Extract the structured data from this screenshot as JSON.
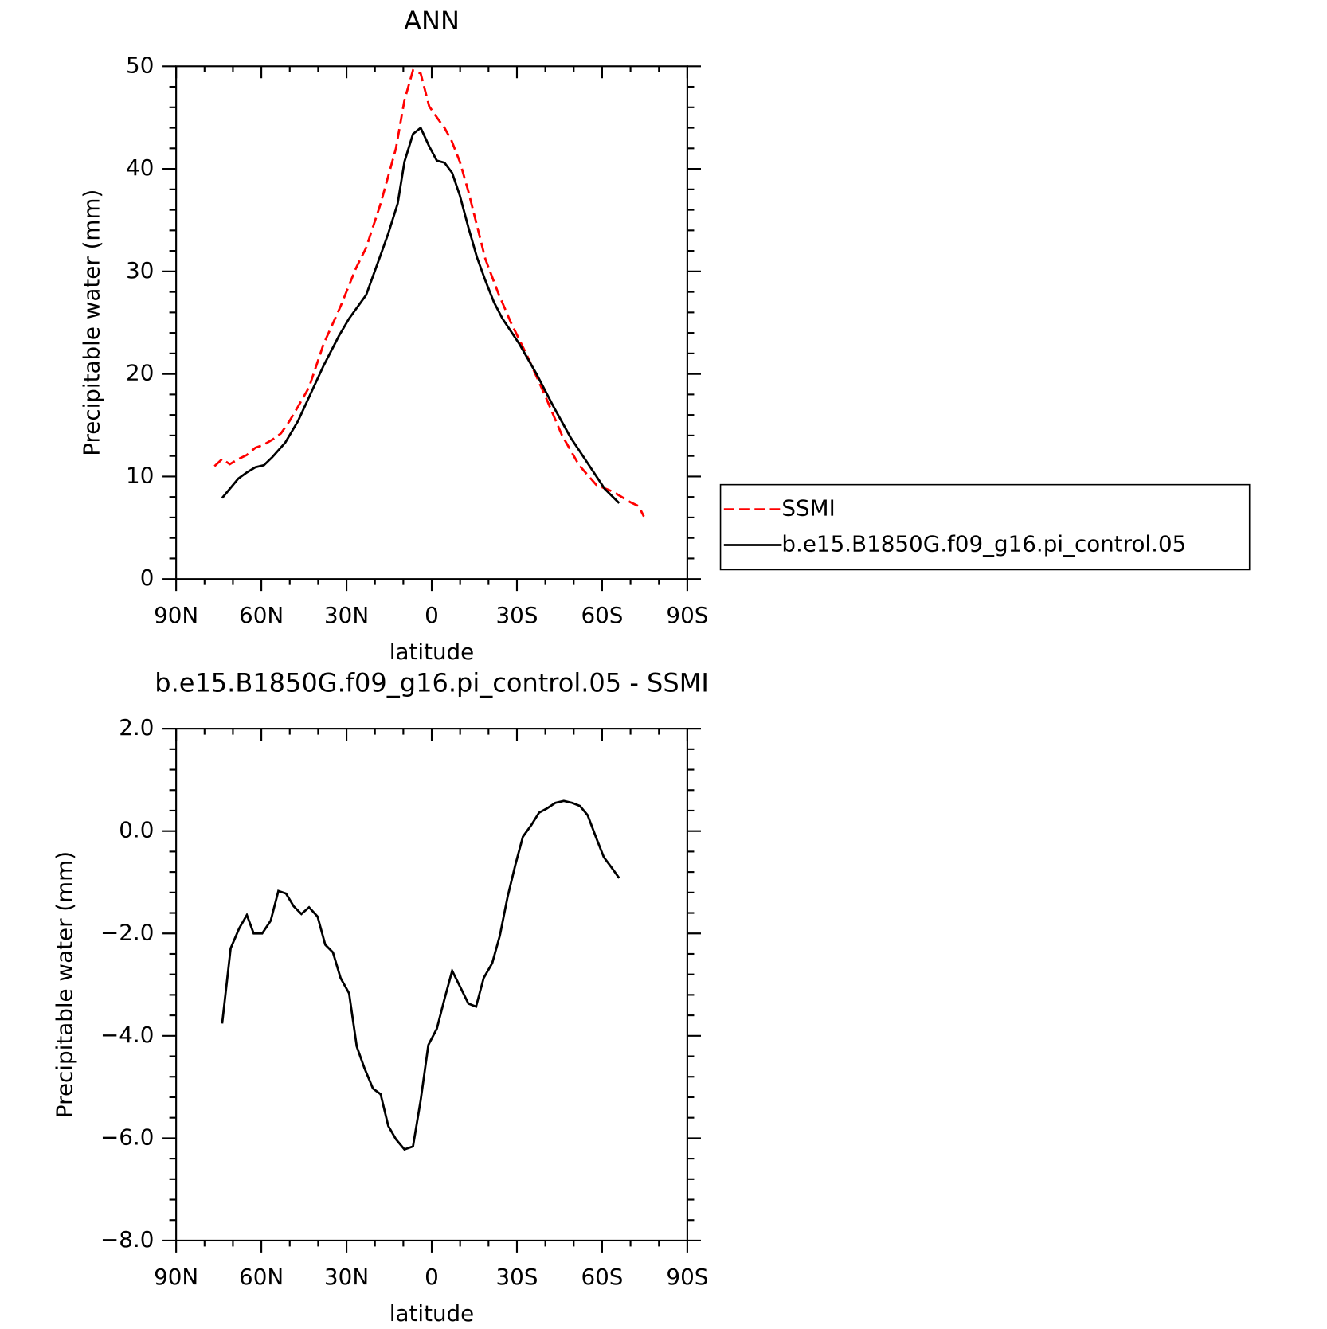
{
  "chart_data": [
    {
      "type": "line",
      "title": "ANN",
      "xlabel": "latitude",
      "ylabel": "Precipitable water (mm)",
      "xlim": [
        90,
        -90
      ],
      "xticks": [
        {
          "value": 90,
          "label": "90N"
        },
        {
          "value": 60,
          "label": "60N"
        },
        {
          "value": 30,
          "label": "30N"
        },
        0,
        {
          "value": -30,
          "label": "30S"
        },
        {
          "value": -60,
          "label": "60S"
        },
        {
          "value": -90,
          "label": "90S"
        }
      ],
      "ylim": [
        0,
        50
      ],
      "yticks": [
        0,
        10,
        20,
        30,
        40,
        50
      ],
      "series": [
        {
          "name": "SSMI",
          "color": "#ff0000",
          "dash": true,
          "x": [
            76.5,
            73.8,
            71.1,
            68.1,
            65.1,
            62.1,
            59.1,
            56.1,
            53.1,
            50.1,
            47.1,
            43.2,
            38.1,
            32.1,
            26.7,
            23.1,
            18.0,
            12.6,
            9.6,
            6.6,
            3.9,
            0.9,
            -2.1,
            -4.5,
            -6.9,
            -9.9,
            -12.9,
            -15.9,
            -18.9,
            -23.4,
            -27.9,
            -33.9,
            -39.9,
            -45.9,
            -51.9,
            -57.9,
            -63.9,
            -69.9,
            -72.9,
            -74.7
          ],
          "values": [
            11.0,
            11.7,
            11.2,
            11.7,
            12.1,
            12.8,
            13.1,
            13.6,
            14.2,
            15.4,
            16.8,
            18.7,
            22.9,
            26.6,
            30.3,
            32.3,
            36.6,
            42.0,
            46.7,
            49.6,
            49.3,
            46.1,
            44.9,
            44.0,
            42.8,
            40.7,
            37.8,
            34.5,
            31.2,
            27.9,
            25.0,
            21.6,
            17.9,
            14.0,
            11.1,
            9.2,
            8.5,
            7.5,
            7.1,
            6.1
          ]
        },
        {
          "name": "b.e15.B1850G.f09_g16.pi_control.05",
          "color": "#000000",
          "dash": false,
          "x": [
            73.8,
            68.1,
            65.1,
            62.1,
            59.1,
            56.1,
            51.6,
            47.1,
            42.6,
            38.1,
            32.7,
            29.1,
            23.1,
            18.0,
            15.3,
            12.0,
            9.6,
            6.6,
            3.9,
            0.9,
            -1.8,
            -4.5,
            -7.2,
            -9.9,
            -12.9,
            -15.9,
            -18.9,
            -21.9,
            -24.9,
            -30.9,
            -36.9,
            -42.9,
            -48.9,
            -54.9,
            -60.9,
            -66.0
          ],
          "values": [
            7.9,
            9.8,
            10.4,
            10.9,
            11.1,
            11.9,
            13.3,
            15.4,
            18.1,
            20.8,
            23.7,
            25.4,
            27.7,
            31.6,
            33.7,
            36.6,
            40.7,
            43.4,
            44.0,
            42.2,
            40.8,
            40.6,
            39.6,
            37.4,
            34.3,
            31.4,
            29.1,
            27.0,
            25.4,
            22.9,
            20.0,
            16.8,
            13.8,
            11.3,
            8.8,
            7.4
          ]
        }
      ],
      "legend": "right"
    },
    {
      "type": "line",
      "title": "b.e15.B1850G.f09_g16.pi_control.05 - SSMI",
      "xlabel": "latitude",
      "ylabel": "Precipitable water (mm)",
      "xlim": [
        90,
        -90
      ],
      "xticks": [
        {
          "value": 90,
          "label": "90N"
        },
        {
          "value": 60,
          "label": "60N"
        },
        {
          "value": 30,
          "label": "30N"
        },
        0,
        {
          "value": -30,
          "label": "30S"
        },
        {
          "value": -60,
          "label": "60S"
        },
        {
          "value": -90,
          "label": "90S"
        }
      ],
      "ylim": [
        -8,
        2
      ],
      "yticks": [
        {
          "value": -8,
          "label": "−8.0"
        },
        {
          "value": -6,
          "label": "−6.0"
        },
        {
          "value": -4,
          "label": "−4.0"
        },
        {
          "value": -2,
          "label": "−2.0"
        },
        {
          "value": 0,
          "label": "0.0"
        },
        {
          "value": 2,
          "label": "2.0"
        }
      ],
      "series": [
        {
          "color": "#000000",
          "dash": false,
          "x": [
            73.8,
            70.8,
            67.8,
            65.1,
            62.7,
            59.7,
            56.7,
            54.0,
            51.3,
            48.6,
            45.9,
            43.2,
            40.2,
            37.5,
            34.8,
            32.1,
            29.1,
            26.4,
            23.7,
            20.7,
            18.0,
            15.3,
            12.6,
            9.6,
            6.6,
            3.9,
            1.2,
            -1.8,
            -4.5,
            -7.2,
            -9.9,
            -12.9,
            -15.6,
            -18.3,
            -21.3,
            -24.0,
            -26.7,
            -29.4,
            -32.1,
            -35.1,
            -37.8,
            -40.5,
            -43.5,
            -46.5,
            -49.5,
            -52.2,
            -54.9,
            -57.9,
            -60.6,
            -63.3,
            -66.0
          ],
          "values": [
            -3.76,
            -2.29,
            -1.9,
            -1.64,
            -2.0,
            -2.0,
            -1.75,
            -1.17,
            -1.22,
            -1.47,
            -1.62,
            -1.49,
            -1.67,
            -2.22,
            -2.37,
            -2.87,
            -3.17,
            -4.21,
            -4.63,
            -5.03,
            -5.14,
            -5.76,
            -6.02,
            -6.22,
            -6.16,
            -5.26,
            -4.18,
            -3.86,
            -3.28,
            -2.73,
            -3.03,
            -3.37,
            -3.43,
            -2.87,
            -2.58,
            -2.04,
            -1.29,
            -0.67,
            -0.11,
            0.12,
            0.36,
            0.44,
            0.55,
            0.59,
            0.55,
            0.49,
            0.31,
            -0.13,
            -0.51,
            -0.71,
            -0.92
          ]
        }
      ]
    }
  ]
}
